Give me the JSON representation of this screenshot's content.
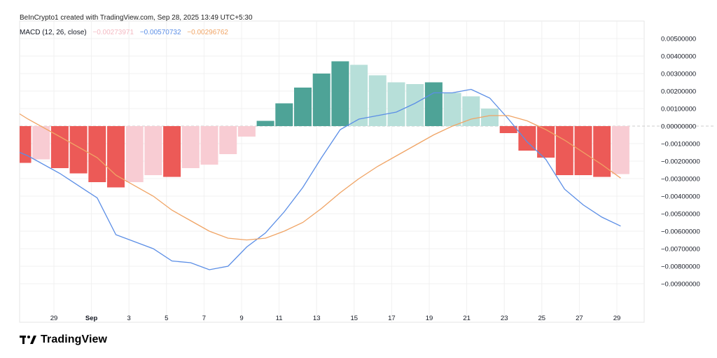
{
  "attribution": "BeInCrypto1 created with TradingView.com, Sep 28, 2025 13:49 UTC+5:30",
  "legend": {
    "indicator": "MACD (12, 26, close)",
    "histogram_value": "−0.00273971",
    "macd_value": "−0.00570732",
    "signal_value": "−0.00296762"
  },
  "branding": {
    "logo_text": "TradingView",
    "logo_glyph": "17"
  },
  "colors": {
    "hist_pos_strong": "#4ea397",
    "hist_pos_weak": "#b7dfd9",
    "hist_neg_strong": "#ec5a57",
    "hist_neg_weak": "#f8ccd3",
    "macd_line": "#5b8ee6",
    "signal_line": "#f0a465",
    "legend_hist": "#f4b9c2",
    "zero_line": "#cccccc"
  },
  "chart_data": {
    "type": "bar",
    "title": "MACD (12, 26, close)",
    "ylim": [
      -0.0095,
      0.0052
    ],
    "y_ticks": [
      "0.00500000",
      "0.00400000",
      "0.00300000",
      "0.00200000",
      "0.00100000",
      "0.00000000",
      "−0.00100000",
      "−0.00200000",
      "−0.00300000",
      "−0.00400000",
      "−0.00500000",
      "−0.00600000",
      "−0.00700000",
      "−0.00800000",
      "−0.00900000"
    ],
    "y_tick_values": [
      0.005,
      0.004,
      0.003,
      0.002,
      0.001,
      0,
      -0.001,
      -0.002,
      -0.003,
      -0.004,
      -0.005,
      -0.006,
      -0.007,
      -0.008,
      -0.009
    ],
    "x_tick_labels": [
      "29",
      "Sep",
      "3",
      "5",
      "7",
      "9",
      "11",
      "13",
      "15",
      "17",
      "19",
      "21",
      "23",
      "25",
      "27",
      "29"
    ],
    "x_tick_index": [
      1,
      3,
      5,
      7,
      9,
      11,
      13,
      15,
      17,
      19,
      21,
      23,
      25,
      27,
      29,
      31
    ],
    "histogram": [
      {
        "i": 0,
        "v": -0.0021,
        "shade": "strong"
      },
      {
        "i": 1,
        "v": -0.0019,
        "shade": "weak"
      },
      {
        "i": 2,
        "v": -0.0024,
        "shade": "strong"
      },
      {
        "i": 3,
        "v": -0.0027,
        "shade": "strong"
      },
      {
        "i": 4,
        "v": -0.0032,
        "shade": "strong"
      },
      {
        "i": 5,
        "v": -0.0035,
        "shade": "strong"
      },
      {
        "i": 6,
        "v": -0.0032,
        "shade": "weak"
      },
      {
        "i": 7,
        "v": -0.0028,
        "shade": "weak"
      },
      {
        "i": 8,
        "v": -0.0029,
        "shade": "strong"
      },
      {
        "i": 9,
        "v": -0.0024,
        "shade": "weak"
      },
      {
        "i": 10,
        "v": -0.0022,
        "shade": "weak"
      },
      {
        "i": 11,
        "v": -0.0016,
        "shade": "weak"
      },
      {
        "i": 12,
        "v": -0.0006,
        "shade": "weak"
      },
      {
        "i": 13,
        "v": 0.0003,
        "shade": "strong"
      },
      {
        "i": 14,
        "v": 0.0013,
        "shade": "strong"
      },
      {
        "i": 15,
        "v": 0.0022,
        "shade": "strong"
      },
      {
        "i": 16,
        "v": 0.003,
        "shade": "strong"
      },
      {
        "i": 17,
        "v": 0.0037,
        "shade": "strong"
      },
      {
        "i": 18,
        "v": 0.0035,
        "shade": "weak"
      },
      {
        "i": 19,
        "v": 0.0029,
        "shade": "weak"
      },
      {
        "i": 20,
        "v": 0.0025,
        "shade": "weak"
      },
      {
        "i": 21,
        "v": 0.0024,
        "shade": "weak"
      },
      {
        "i": 22,
        "v": 0.0025,
        "shade": "strong"
      },
      {
        "i": 23,
        "v": 0.0019,
        "shade": "weak"
      },
      {
        "i": 24,
        "v": 0.0017,
        "shade": "weak"
      },
      {
        "i": 25,
        "v": 0.001,
        "shade": "weak"
      },
      {
        "i": 26,
        "v": -0.0004,
        "shade": "strong"
      },
      {
        "i": 27,
        "v": -0.0014,
        "shade": "strong"
      },
      {
        "i": 28,
        "v": -0.0018,
        "shade": "strong"
      },
      {
        "i": 29,
        "v": -0.0028,
        "shade": "strong"
      },
      {
        "i": 30,
        "v": -0.0028,
        "shade": "strong"
      },
      {
        "i": 31,
        "v": -0.0029,
        "shade": "strong"
      },
      {
        "i": 32,
        "v": -0.00273971,
        "shade": "weak"
      }
    ],
    "series": [
      {
        "name": "MACD",
        "points": [
          [
            -0.5,
            -0.0015
          ],
          [
            0.3,
            -0.0017
          ],
          [
            2,
            -0.0027
          ],
          [
            4,
            -0.0041
          ],
          [
            5,
            -0.0062
          ],
          [
            7,
            -0.007
          ],
          [
            8,
            -0.0077
          ],
          [
            9,
            -0.0078
          ],
          [
            10,
            -0.0082
          ],
          [
            11,
            -0.008
          ],
          [
            12,
            -0.0069
          ],
          [
            13,
            -0.0061
          ],
          [
            14,
            -0.0049
          ],
          [
            15,
            -0.0035
          ],
          [
            16,
            -0.0018
          ],
          [
            17,
            -0.0002
          ],
          [
            18,
            0.0004
          ],
          [
            19,
            0.0006
          ],
          [
            20,
            0.0008
          ],
          [
            21,
            0.0013
          ],
          [
            22,
            0.0019
          ],
          [
            23,
            0.0019
          ],
          [
            24,
            0.0021
          ],
          [
            25,
            0.0016
          ],
          [
            26,
            0.0004
          ],
          [
            27,
            -0.0009
          ],
          [
            28,
            -0.0019
          ],
          [
            29,
            -0.0036
          ],
          [
            30,
            -0.0045
          ],
          [
            31,
            -0.0052
          ],
          [
            32,
            -0.00570732
          ]
        ]
      },
      {
        "name": "Signal",
        "points": [
          [
            -0.5,
            0.0007
          ],
          [
            0.3,
            0.0004
          ],
          [
            2,
            -0.0006
          ],
          [
            4,
            -0.0018
          ],
          [
            5,
            -0.0028
          ],
          [
            7,
            -0.004
          ],
          [
            8,
            -0.0048
          ],
          [
            9,
            -0.0054
          ],
          [
            10,
            -0.006
          ],
          [
            11,
            -0.0064
          ],
          [
            12,
            -0.0065
          ],
          [
            13,
            -0.0064
          ],
          [
            14,
            -0.006
          ],
          [
            15,
            -0.0055
          ],
          [
            16,
            -0.0047
          ],
          [
            17,
            -0.0038
          ],
          [
            18,
            -0.003
          ],
          [
            19,
            -0.0023
          ],
          [
            20,
            -0.0017
          ],
          [
            21,
            -0.0011
          ],
          [
            22,
            -0.0005
          ],
          [
            23,
            0
          ],
          [
            24,
            0.0004
          ],
          [
            25,
            0.0006
          ],
          [
            26,
            0.0006
          ],
          [
            27,
            0.0003
          ],
          [
            28,
            -0.0002
          ],
          [
            29,
            -0.0008
          ],
          [
            30,
            -0.0015
          ],
          [
            31,
            -0.0022
          ],
          [
            32,
            -0.00296762
          ]
        ]
      }
    ]
  }
}
